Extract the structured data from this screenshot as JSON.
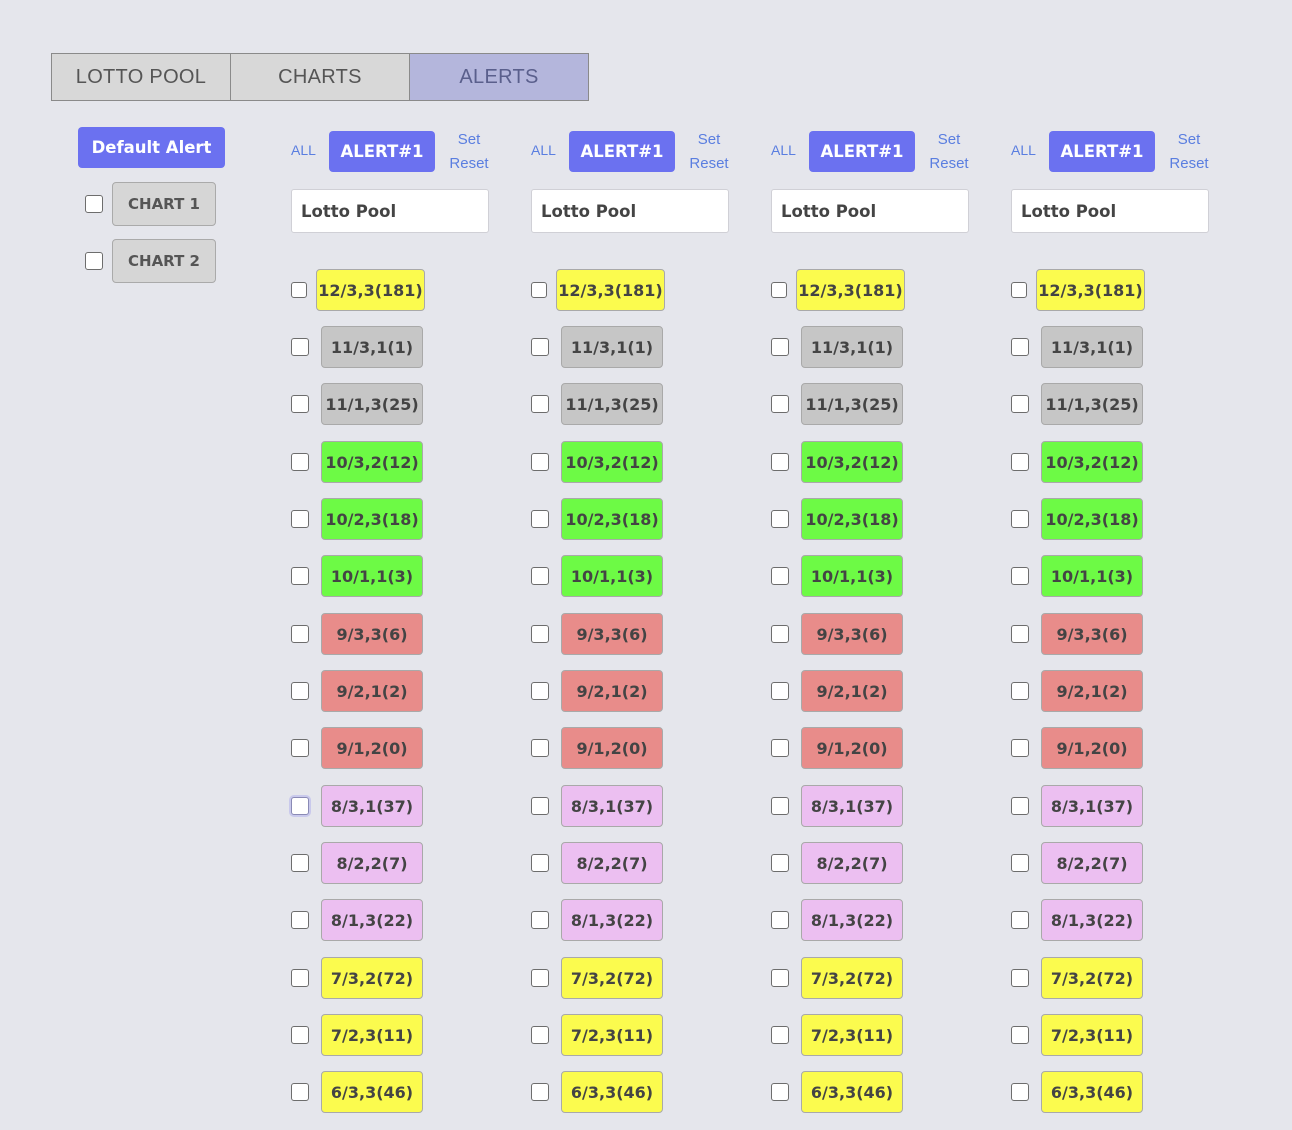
{
  "tabs": [
    "LOTTO POOL",
    "CHARTS",
    "ALERTS"
  ],
  "active_tab": "ALERTS",
  "sidebar": {
    "default_alert_label": "Default Alert",
    "charts": [
      "CHART 1",
      "CHART 2"
    ]
  },
  "columns": [
    {
      "all_label": "ALL",
      "alert_label": "ALERT#1",
      "set_label": "Set",
      "reset_label": "Reset",
      "pool_value": "Lotto Pool"
    },
    {
      "all_label": "ALL",
      "alert_label": "ALERT#1",
      "set_label": "Set",
      "reset_label": "Reset",
      "pool_value": "Lotto Pool"
    },
    {
      "all_label": "ALL",
      "alert_label": "ALERT#1",
      "set_label": "Set",
      "reset_label": "Reset",
      "pool_value": "Lotto Pool"
    },
    {
      "all_label": "ALL",
      "alert_label": "ALERT#1",
      "set_label": "Set",
      "reset_label": "Reset",
      "pool_value": "Lotto Pool"
    }
  ],
  "items": [
    {
      "label": "12/3,3(181)",
      "color": "#fbfb4e"
    },
    {
      "label": "11/3,1(1)",
      "color": "#c6c6c6"
    },
    {
      "label": "11/1,3(25)",
      "color": "#c6c6c6"
    },
    {
      "label": "10/3,2(12)",
      "color": "#6dfa45"
    },
    {
      "label": "10/2,3(18)",
      "color": "#6dfa45"
    },
    {
      "label": "10/1,1(3)",
      "color": "#6dfa45"
    },
    {
      "label": "9/3,3(6)",
      "color": "#e88c8a"
    },
    {
      "label": "9/2,1(2)",
      "color": "#e88c8a"
    },
    {
      "label": "9/1,2(0)",
      "color": "#e88c8a"
    },
    {
      "label": "8/3,1(37)",
      "color": "#ecbff1"
    },
    {
      "label": "8/2,2(7)",
      "color": "#ecbff1"
    },
    {
      "label": "8/1,3(22)",
      "color": "#ecbff1"
    },
    {
      "label": "7/3,2(72)",
      "color": "#fbfb4e"
    },
    {
      "label": "7/2,3(11)",
      "color": "#fbfb4e"
    },
    {
      "label": "6/3,3(46)",
      "color": "#fbfb4e"
    }
  ]
}
